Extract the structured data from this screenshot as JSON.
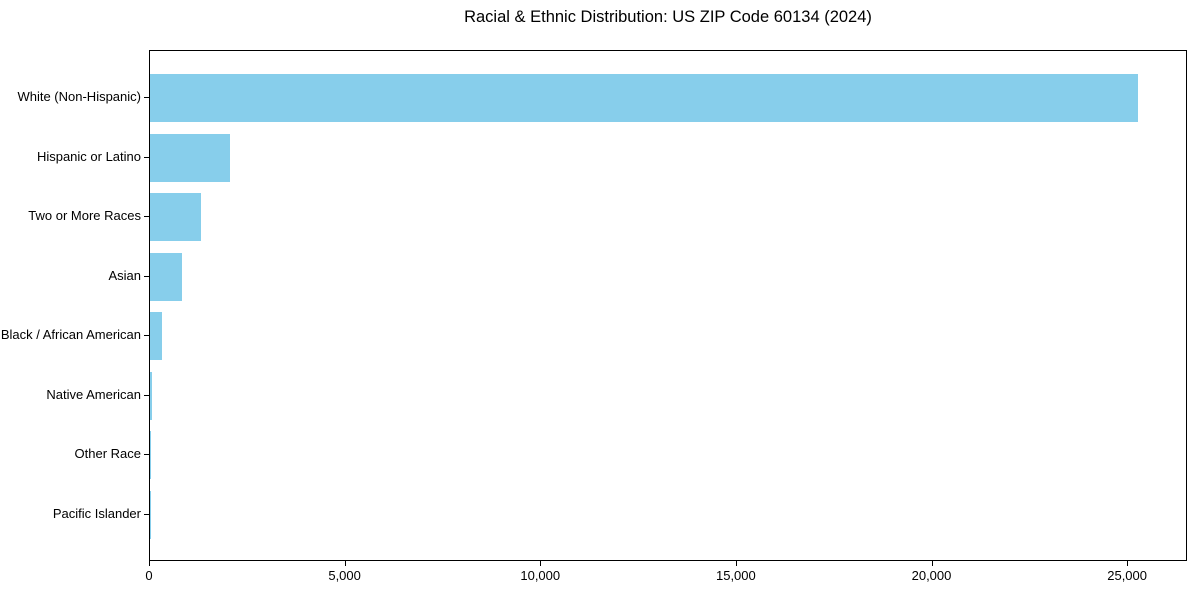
{
  "chart_data": {
    "type": "bar",
    "orientation": "horizontal",
    "title": "Racial & Ethnic Distribution: US ZIP Code 60134 (2024)",
    "categories": [
      "White (Non-Hispanic)",
      "Hispanic or Latino",
      "Two or More Races",
      "Asian",
      "Black / African American",
      "Native American",
      "Other Race",
      "Pacific Islander"
    ],
    "values": [
      25250,
      2050,
      1300,
      830,
      310,
      50,
      15,
      5
    ],
    "xlabel": "",
    "ylabel": "",
    "xlim": [
      0,
      26530
    ],
    "xticks": [
      0,
      5000,
      10000,
      15000,
      20000,
      25000
    ],
    "xtick_labels": [
      "0",
      "5,000",
      "10,000",
      "15,000",
      "20,000",
      "25,000"
    ],
    "bar_color": "#87CEEB",
    "background_color": "#FFFFFF",
    "axis_color": "#000000",
    "grid": false,
    "legend": false
  }
}
